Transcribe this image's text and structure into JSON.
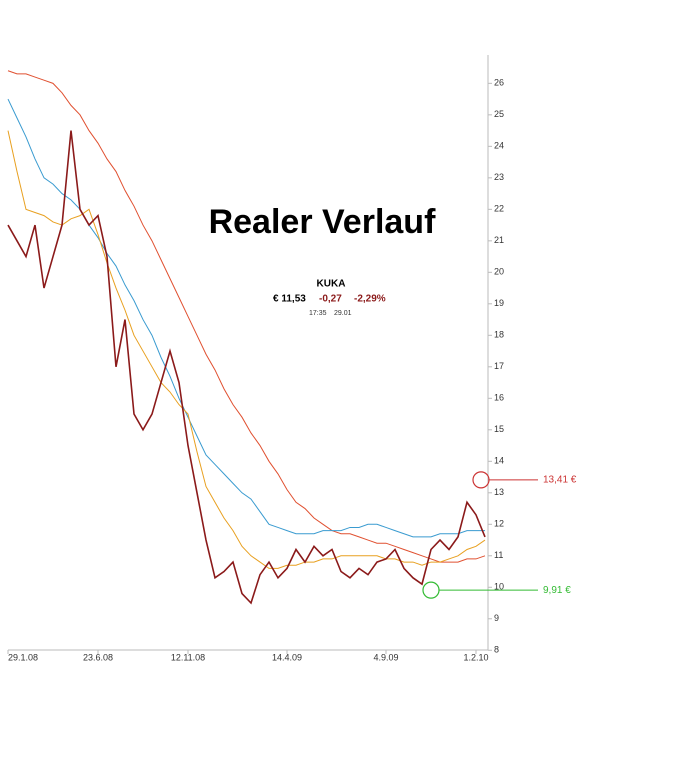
{
  "chart_data": {
    "type": "line",
    "title": "Realer Verlauf",
    "quote": {
      "name": "KUKA",
      "price": "€ 11,53",
      "change": "-0,27",
      "change_pct": "-2,29%",
      "time": "17:35",
      "date": "29.01"
    },
    "categories": [
      "29.1.08",
      null,
      null,
      null,
      null,
      null,
      null,
      null,
      null,
      null,
      "23.6.08",
      null,
      null,
      null,
      null,
      null,
      null,
      null,
      null,
      null,
      "12.11.08",
      null,
      null,
      null,
      null,
      null,
      null,
      null,
      null,
      null,
      null,
      "14.4.09",
      null,
      null,
      null,
      null,
      null,
      null,
      null,
      null,
      null,
      null,
      "4.9.09",
      null,
      null,
      null,
      null,
      null,
      null,
      null,
      null,
      null,
      "1.2.10",
      null
    ],
    "series": [
      {
        "color": "#8b1a1a",
        "values": [
          21.5,
          21,
          20.5,
          21.5,
          19.5,
          20.5,
          21.5,
          24.5,
          22,
          21.5,
          21.8,
          20.5,
          17,
          18.5,
          15.5,
          15,
          15.5,
          16.5,
          17.5,
          16.5,
          14.5,
          13,
          11.5,
          10.3,
          10.5,
          10.8,
          9.8,
          9.5,
          10.4,
          10.8,
          10.3,
          10.6,
          11.2,
          10.8,
          11.3,
          11,
          11.2,
          10.5,
          10.3,
          10.6,
          10.4,
          10.8,
          10.9,
          11.2,
          10.6,
          10.3,
          10.1,
          11.2,
          11.5,
          11.2,
          11.6,
          12.7,
          12.3,
          11.6
        ]
      },
      {
        "color": "#e8a020",
        "values": [
          24.5,
          23.2,
          22.0,
          21.9,
          21.8,
          21.6,
          21.5,
          21.7,
          21.8,
          22.0,
          21.2,
          20.3,
          19.5,
          18.8,
          18.0,
          17.5,
          17.0,
          16.5,
          16.2,
          15.8,
          15.5,
          14.3,
          13.2,
          12.7,
          12.2,
          11.8,
          11.3,
          11.0,
          10.8,
          10.6,
          10.6,
          10.7,
          10.7,
          10.8,
          10.8,
          10.9,
          10.9,
          11.0,
          11.0,
          11.0,
          11.0,
          11.0,
          10.9,
          10.9,
          10.8,
          10.8,
          10.7,
          10.8,
          10.8,
          10.9,
          11.0,
          11.2,
          11.3,
          11.5
        ]
      },
      {
        "color": "#3a9bd0",
        "values": [
          25.5,
          24.9,
          24.3,
          23.6,
          23.0,
          22.8,
          22.5,
          22.3,
          22.0,
          21.5,
          21.1,
          20.6,
          20.2,
          19.6,
          19.1,
          18.5,
          18.0,
          17.3,
          16.7,
          16.0,
          15.4,
          14.8,
          14.2,
          13.9,
          13.6,
          13.3,
          13.0,
          12.8,
          12.4,
          12.0,
          11.9,
          11.8,
          11.7,
          11.7,
          11.7,
          11.8,
          11.8,
          11.8,
          11.9,
          11.9,
          12.0,
          12.0,
          11.9,
          11.8,
          11.7,
          11.6,
          11.6,
          11.6,
          11.7,
          11.7,
          11.7,
          11.8,
          11.8,
          11.8
        ]
      },
      {
        "color": "#e05030",
        "values": [
          26.4,
          26.3,
          26.3,
          26.2,
          26.1,
          26.0,
          25.7,
          25.3,
          25.0,
          24.5,
          24.1,
          23.6,
          23.2,
          22.6,
          22.1,
          21.5,
          21.0,
          20.4,
          19.8,
          19.2,
          18.6,
          18.0,
          17.4,
          16.9,
          16.3,
          15.8,
          15.4,
          14.9,
          14.5,
          14.0,
          13.6,
          13.1,
          12.7,
          12.5,
          12.2,
          12.0,
          11.8,
          11.7,
          11.7,
          11.6,
          11.5,
          11.4,
          11.4,
          11.3,
          11.2,
          11.1,
          11.0,
          10.9,
          10.8,
          10.8,
          10.8,
          10.9,
          10.9,
          11.0
        ]
      }
    ],
    "ylim": [
      7.85,
      26.9
    ],
    "yticks": [
      8,
      9,
      10,
      11,
      12,
      13,
      14,
      15,
      16,
      17,
      18,
      19,
      20,
      21,
      22,
      23,
      24,
      25,
      26
    ],
    "annotations": [
      {
        "text": "13,41 €",
        "value": 13.41,
        "color": "#cc3333"
      },
      {
        "text": "9,91 €",
        "value": 9.91,
        "color": "#33bb33"
      }
    ]
  }
}
